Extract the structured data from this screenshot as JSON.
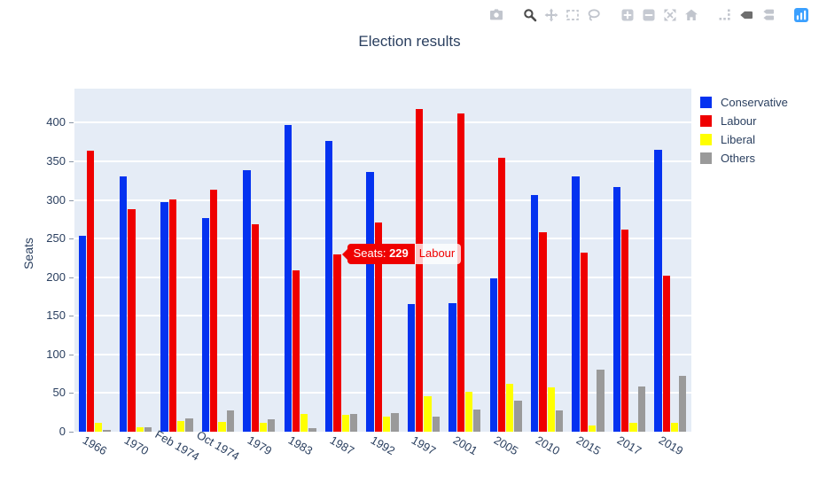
{
  "text_color": "#2a3f5f",
  "modebar": {
    "icons": [
      "camera",
      "zoom",
      "pan",
      "box-select",
      "lasso-select",
      "zoom-in",
      "zoom-out",
      "autoscale",
      "reset-axes",
      "spikelines",
      "hover-closest",
      "hover-compare",
      "plotly-logo"
    ],
    "active_icon": "zoom",
    "icon_color": "#c1c5cd",
    "active_color": "#4c4c4c",
    "logo_color": "#3ba0ff"
  },
  "chart_data": {
    "type": "bar",
    "title": "Election results",
    "xlabel": "",
    "ylabel": "Seats",
    "categories": [
      "1966",
      "1970",
      "Feb 1974",
      "Oct 1974",
      "1979",
      "1983",
      "1987",
      "1992",
      "1997",
      "2001",
      "2005",
      "2010",
      "2015",
      "2017",
      "2019"
    ],
    "series": [
      {
        "name": "Conservative",
        "color": "#0432f0",
        "values": [
          253,
          330,
          297,
          277,
          339,
          397,
          376,
          336,
          165,
          166,
          198,
          306,
          330,
          317,
          365
        ]
      },
      {
        "name": "Labour",
        "color": "#ef0000",
        "values": [
          364,
          288,
          301,
          313,
          269,
          209,
          229,
          271,
          418,
          412,
          355,
          258,
          232,
          262,
          202
        ]
      },
      {
        "name": "Liberal",
        "color": "#ffff00",
        "values": [
          12,
          6,
          14,
          13,
          11,
          23,
          22,
          20,
          46,
          52,
          62,
          57,
          8,
          12,
          11
        ]
      },
      {
        "name": "Others",
        "color": "#9a9a9a",
        "values": [
          2,
          6,
          17,
          28,
          16,
          5,
          23,
          24,
          20,
          29,
          40,
          27,
          80,
          59,
          72
        ]
      }
    ],
    "ylim": [
      0,
      444
    ],
    "yticks": [
      0,
      50,
      100,
      150,
      200,
      250,
      300,
      350,
      400
    ],
    "grid": true,
    "legend_position": "right",
    "plot_bg": "#e5ecf6",
    "tooltip": {
      "prefix": "Seats: ",
      "value": "229",
      "series": "Labour",
      "category": "1987",
      "bg": "#ef0000",
      "text_color": "#ffffff"
    }
  }
}
